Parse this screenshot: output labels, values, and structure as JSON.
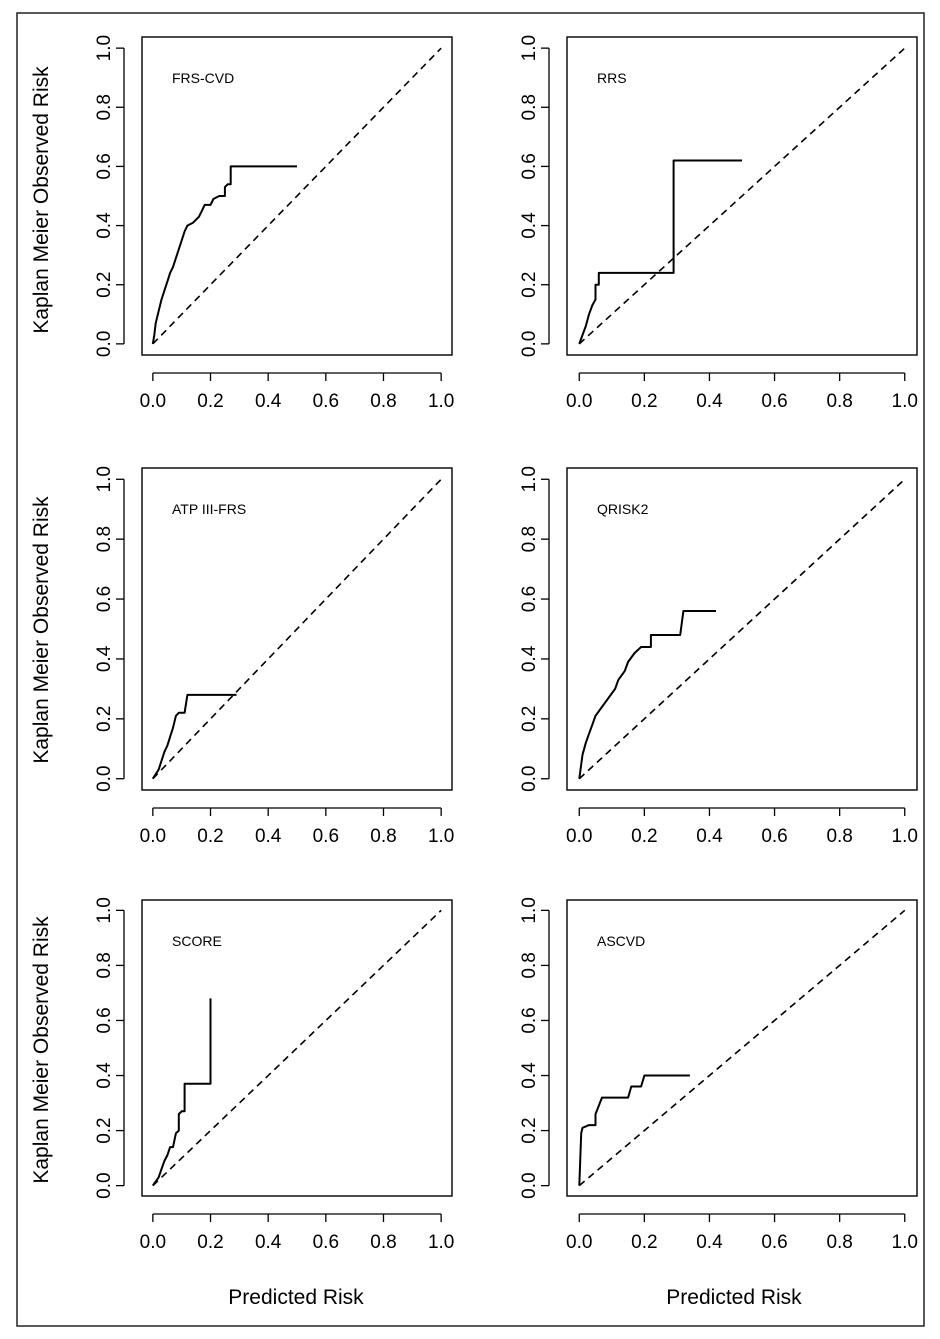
{
  "chart_data": {
    "type": "line",
    "x_axis_label": "Predicted Risk",
    "y_axis_label": "Kaplan Meier Observed Risk",
    "xlim": [
      0,
      1
    ],
    "ylim": [
      0,
      1
    ],
    "x_ticks": [
      "0.0",
      "0.2",
      "0.4",
      "0.6",
      "0.8",
      "1.0"
    ],
    "y_ticks": [
      "0.0",
      "0.2",
      "0.4",
      "0.6",
      "0.8",
      "1.0"
    ],
    "reference_line": "dashed diagonal y = x",
    "panels": [
      {
        "title": "FRS-CVD",
        "series": [
          [
            0,
            0
          ],
          [
            0.005,
            0.03
          ],
          [
            0.01,
            0.07
          ],
          [
            0.02,
            0.11
          ],
          [
            0.03,
            0.15
          ],
          [
            0.04,
            0.18
          ],
          [
            0.05,
            0.21
          ],
          [
            0.06,
            0.24
          ],
          [
            0.07,
            0.26
          ],
          [
            0.08,
            0.29
          ],
          [
            0.09,
            0.32
          ],
          [
            0.1,
            0.35
          ],
          [
            0.11,
            0.38
          ],
          [
            0.12,
            0.4
          ],
          [
            0.14,
            0.41
          ],
          [
            0.16,
            0.43
          ],
          [
            0.17,
            0.45
          ],
          [
            0.18,
            0.47
          ],
          [
            0.2,
            0.47
          ],
          [
            0.21,
            0.49
          ],
          [
            0.23,
            0.5
          ],
          [
            0.25,
            0.5
          ],
          [
            0.25,
            0.53
          ],
          [
            0.26,
            0.54
          ],
          [
            0.27,
            0.54
          ],
          [
            0.27,
            0.6
          ],
          [
            0.5,
            0.6
          ]
        ]
      },
      {
        "title": "RRS",
        "series": [
          [
            0,
            0
          ],
          [
            0.01,
            0.03
          ],
          [
            0.02,
            0.06
          ],
          [
            0.03,
            0.1
          ],
          [
            0.04,
            0.13
          ],
          [
            0.05,
            0.15
          ],
          [
            0.05,
            0.2
          ],
          [
            0.06,
            0.2
          ],
          [
            0.06,
            0.24
          ],
          [
            0.29,
            0.24
          ],
          [
            0.29,
            0.62
          ],
          [
            0.5,
            0.62
          ]
        ]
      },
      {
        "title": "ATP III-FRS",
        "series": [
          [
            0,
            0
          ],
          [
            0.02,
            0.03
          ],
          [
            0.03,
            0.06
          ],
          [
            0.04,
            0.09
          ],
          [
            0.05,
            0.11
          ],
          [
            0.06,
            0.14
          ],
          [
            0.07,
            0.17
          ],
          [
            0.08,
            0.21
          ],
          [
            0.09,
            0.22
          ],
          [
            0.11,
            0.22
          ],
          [
            0.12,
            0.28
          ],
          [
            0.29,
            0.28
          ]
        ]
      },
      {
        "title": "QRISK2",
        "series": [
          [
            0,
            0
          ],
          [
            0.005,
            0.04
          ],
          [
            0.01,
            0.08
          ],
          [
            0.02,
            0.12
          ],
          [
            0.03,
            0.15
          ],
          [
            0.04,
            0.18
          ],
          [
            0.05,
            0.21
          ],
          [
            0.07,
            0.24
          ],
          [
            0.09,
            0.27
          ],
          [
            0.11,
            0.3
          ],
          [
            0.12,
            0.33
          ],
          [
            0.14,
            0.36
          ],
          [
            0.15,
            0.39
          ],
          [
            0.17,
            0.42
          ],
          [
            0.19,
            0.44
          ],
          [
            0.22,
            0.44
          ],
          [
            0.22,
            0.48
          ],
          [
            0.31,
            0.48
          ],
          [
            0.32,
            0.56
          ],
          [
            0.42,
            0.56
          ]
        ]
      },
      {
        "title": "SCORE",
        "series": [
          [
            0,
            0
          ],
          [
            0.02,
            0.03
          ],
          [
            0.03,
            0.06
          ],
          [
            0.04,
            0.09
          ],
          [
            0.05,
            0.11
          ],
          [
            0.06,
            0.14
          ],
          [
            0.07,
            0.14
          ],
          [
            0.08,
            0.19
          ],
          [
            0.09,
            0.2
          ],
          [
            0.09,
            0.26
          ],
          [
            0.1,
            0.27
          ],
          [
            0.11,
            0.27
          ],
          [
            0.11,
            0.37
          ],
          [
            0.2,
            0.37
          ],
          [
            0.2,
            0.68
          ]
        ]
      },
      {
        "title": "ASCVD",
        "series": [
          [
            0,
            0
          ],
          [
            0.002,
            0.06
          ],
          [
            0.004,
            0.13
          ],
          [
            0.006,
            0.19
          ],
          [
            0.01,
            0.21
          ],
          [
            0.03,
            0.22
          ],
          [
            0.05,
            0.22
          ],
          [
            0.05,
            0.26
          ],
          [
            0.07,
            0.32
          ],
          [
            0.12,
            0.32
          ],
          [
            0.15,
            0.32
          ],
          [
            0.16,
            0.36
          ],
          [
            0.19,
            0.36
          ],
          [
            0.2,
            0.4
          ],
          [
            0.34,
            0.4
          ]
        ]
      }
    ]
  }
}
